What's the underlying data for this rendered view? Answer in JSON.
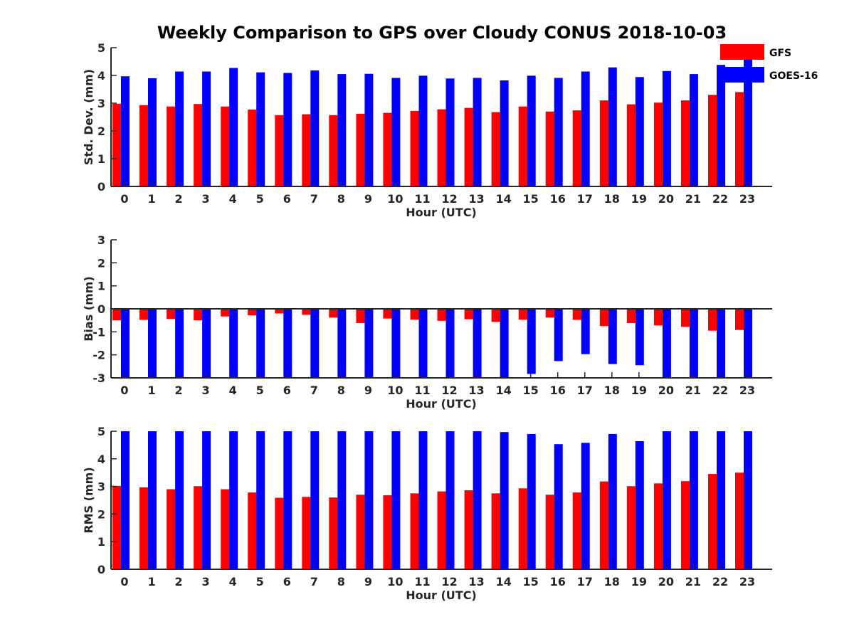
{
  "figure": {
    "title": "Weekly Comparison to GPS over Cloudy CONUS 2018-10-03"
  },
  "legend": {
    "items": [
      {
        "label": "GFS",
        "color": "#ff0000"
      },
      {
        "label": "GOES-16",
        "color": "#0000ff"
      }
    ],
    "placement": "top-right, outside plot"
  },
  "chart_data": [
    {
      "type": "bar",
      "title": "Weekly Comparison to GPS over Cloudy CONUS 2018-10-03",
      "xlabel": "Hour (UTC)",
      "ylabel": "Std. Dev. (mm)",
      "ylim": [
        0,
        5
      ],
      "yticks": [
        0,
        1,
        2,
        3,
        4,
        5
      ],
      "grid": false,
      "categories": [
        "0",
        "1",
        "2",
        "3",
        "4",
        "5",
        "6",
        "7",
        "8",
        "9",
        "10",
        "11",
        "12",
        "13",
        "14",
        "15",
        "16",
        "17",
        "18",
        "19",
        "20",
        "21",
        "22",
        "23"
      ],
      "series": [
        {
          "name": "GFS",
          "color": "#ff0000",
          "values": [
            2.98,
            2.93,
            2.88,
            2.97,
            2.88,
            2.77,
            2.57,
            2.6,
            2.57,
            2.62,
            2.65,
            2.72,
            2.78,
            2.83,
            2.68,
            2.88,
            2.7,
            2.74,
            3.1,
            2.96,
            3.02,
            3.1,
            3.3,
            3.4
          ]
        },
        {
          "name": "GOES-16",
          "color": "#0000ff",
          "values": [
            3.97,
            3.9,
            4.14,
            4.14,
            4.27,
            4.11,
            4.09,
            4.18,
            4.05,
            4.06,
            3.91,
            3.99,
            3.89,
            3.91,
            3.82,
            3.99,
            3.91,
            4.14,
            4.29,
            3.94,
            4.16,
            4.05,
            4.38,
            4.6
          ]
        }
      ]
    },
    {
      "type": "bar",
      "title": "",
      "xlabel": "Hour (UTC)",
      "ylabel": "Bias (mm)",
      "ylim": [
        -3,
        3
      ],
      "yticks": [
        -3,
        -2,
        -1,
        0,
        1,
        2,
        3
      ],
      "grid": false,
      "zero_line": true,
      "categories": [
        "0",
        "1",
        "2",
        "3",
        "4",
        "5",
        "6",
        "7",
        "8",
        "9",
        "10",
        "11",
        "12",
        "13",
        "14",
        "15",
        "16",
        "17",
        "18",
        "19",
        "20",
        "21",
        "22",
        "23"
      ],
      "series": [
        {
          "name": "GFS",
          "color": "#ff0000",
          "values": [
            -0.5,
            -0.48,
            -0.44,
            -0.5,
            -0.33,
            -0.28,
            -0.2,
            -0.26,
            -0.38,
            -0.62,
            -0.42,
            -0.47,
            -0.52,
            -0.45,
            -0.57,
            -0.47,
            -0.38,
            -0.48,
            -0.75,
            -0.62,
            -0.72,
            -0.78,
            -0.95,
            -0.92
          ]
        },
        {
          "name": "GOES-16",
          "color": "#0000ff",
          "values": [
            -3.0,
            -3.0,
            -3.0,
            -3.0,
            -3.0,
            -3.0,
            -3.0,
            -3.0,
            -3.0,
            -3.0,
            -3.0,
            -3.0,
            -3.0,
            -3.0,
            -3.0,
            -2.83,
            -2.27,
            -1.97,
            -2.4,
            -2.45,
            -3.0,
            -3.0,
            -3.0,
            -3.0
          ]
        }
      ]
    },
    {
      "type": "bar",
      "title": "",
      "xlabel": "Hour (UTC)",
      "ylabel": "RMS (mm)",
      "ylim": [
        0,
        5
      ],
      "yticks": [
        0,
        1,
        2,
        3,
        4,
        5
      ],
      "grid": false,
      "categories": [
        "0",
        "1",
        "2",
        "3",
        "4",
        "5",
        "6",
        "7",
        "8",
        "9",
        "10",
        "11",
        "12",
        "13",
        "14",
        "15",
        "16",
        "17",
        "18",
        "19",
        "20",
        "21",
        "22",
        "23"
      ],
      "series": [
        {
          "name": "GFS",
          "color": "#ff0000",
          "values": [
            3.02,
            2.97,
            2.9,
            3.01,
            2.9,
            2.78,
            2.59,
            2.62,
            2.6,
            2.7,
            2.68,
            2.75,
            2.82,
            2.86,
            2.75,
            2.93,
            2.7,
            2.78,
            3.18,
            3.01,
            3.11,
            3.19,
            3.45,
            3.5
          ]
        },
        {
          "name": "GOES-16",
          "color": "#0000ff",
          "values": [
            5.0,
            5.0,
            5.0,
            5.0,
            5.0,
            5.0,
            5.0,
            5.0,
            5.0,
            5.0,
            5.0,
            5.0,
            5.0,
            5.0,
            4.97,
            4.9,
            4.53,
            4.58,
            4.9,
            4.64,
            5.0,
            5.0,
            5.0,
            5.0
          ]
        }
      ]
    }
  ]
}
